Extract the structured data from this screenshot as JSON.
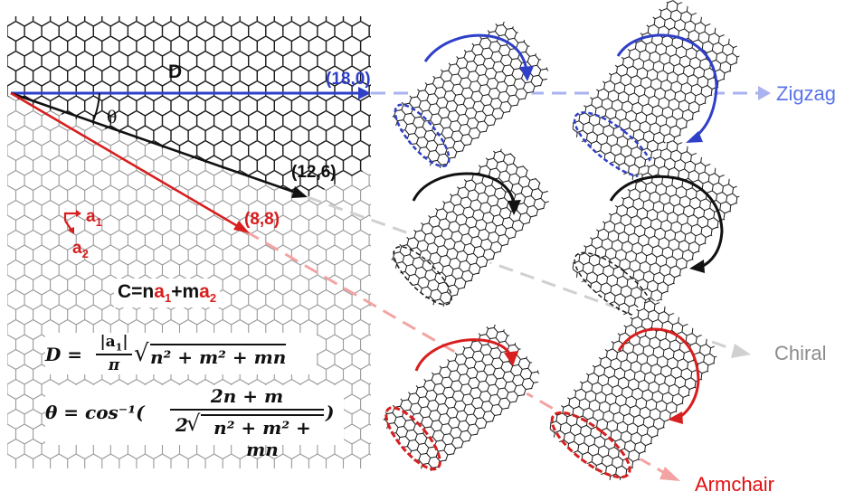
{
  "labels": {
    "d_sheet": "D",
    "vec_zigzag": "(18,0)",
    "vec_chiral": "(12,6)",
    "vec_armchair": "(8,8)",
    "theta": "θ",
    "a1": "a",
    "a1_sub": "1",
    "a2": "a",
    "a2_sub": "2",
    "zigzag": "Zigzag",
    "chiral": "Chiral",
    "armchair": "Armchair"
  },
  "formula_c": {
    "lhs": "C=n",
    "a": "a",
    "sub1": "1",
    "mid": "+m",
    "sub2": "2"
  },
  "eq_d": {
    "lhs": "D =",
    "num": "|a",
    "num_sub": "1",
    "num_end": "|",
    "den": "π",
    "root": "n² + m² + mn"
  },
  "eq_theta": {
    "lhs": "θ = cos⁻¹(",
    "num": "2n + m",
    "den_pre": "2",
    "root": "n² + m² + mn",
    "close": ")"
  },
  "colors": {
    "zigzag": "#2f3fc8",
    "zigzag_faded": "#aab2ef",
    "chiral": "#111111",
    "chiral_faded": "#d0d0d0",
    "armchair": "#d81e1e",
    "armchair_faded": "#f4a3a3",
    "label_zigzag": "#5b73e8",
    "label_chiral": "#8c8c8c",
    "label_armchair": "#e01010"
  }
}
